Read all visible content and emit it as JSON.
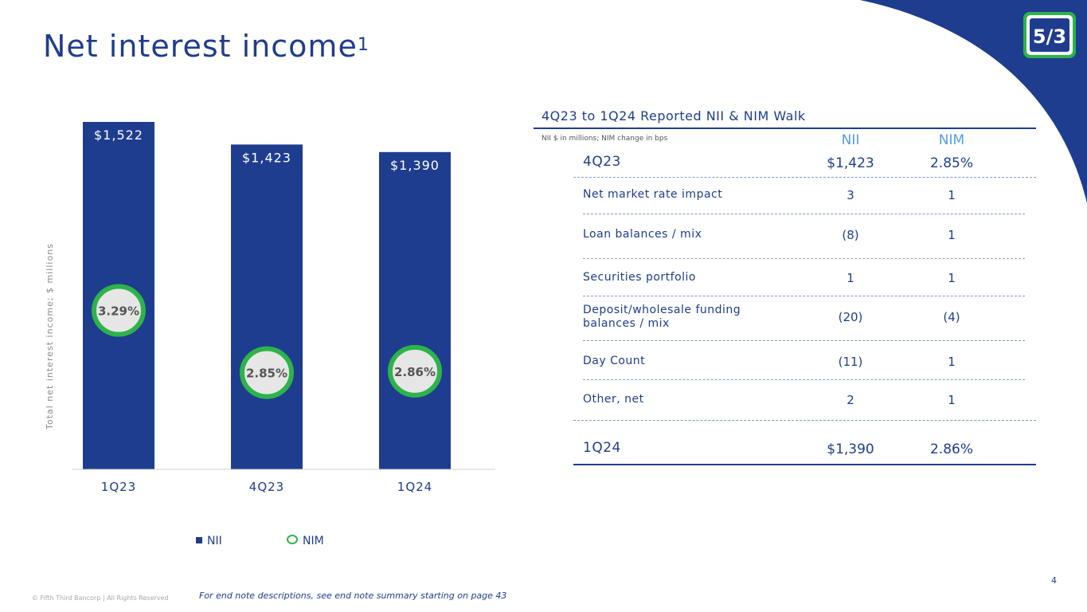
{
  "page": {
    "title": "Net interest income",
    "title_superscript": "1",
    "logo_text": "5/3",
    "page_number": "4",
    "footer_copyright": "© Fifth Third Bancorp | All Rights Reserved",
    "footer_note": "For end note descriptions, see end note summary starting on page 43"
  },
  "colors": {
    "navy": "#1f3d8f",
    "green": "#2db34a",
    "light_blue": "#4f9de0",
    "circle_fill": "#e6e6e6"
  },
  "legend": {
    "nii_label": "NII",
    "nim_label": "NIM"
  },
  "chart_data": {
    "type": "bar",
    "categories": [
      "1Q23",
      "4Q23",
      "1Q24"
    ],
    "series": [
      {
        "name": "NII",
        "values": [
          1522,
          1423,
          1390
        ],
        "labels": [
          "$1,522",
          "$1,423",
          "$1,390"
        ]
      },
      {
        "name": "NIM",
        "values": [
          3.29,
          2.85,
          2.86
        ],
        "labels": [
          "3.29%",
          "2.85%",
          "2.86%"
        ]
      }
    ],
    "ylabel": "Total net interest income; $ millions",
    "xlabel": "",
    "legend_position": "bottom"
  },
  "walk": {
    "title": "4Q23 to 1Q24 Reported NII & NIM Walk",
    "subtitle": "NII $ in millions; NIM change in bps",
    "col_nii": "NII",
    "col_nim": "NIM",
    "start": {
      "label": "4Q23",
      "nii": "$1,423",
      "nim": "2.85%"
    },
    "rows": [
      {
        "label": "Net market rate impact",
        "nii": "3",
        "nim": "1"
      },
      {
        "label": "Loan balances / mix",
        "nii": "(8)",
        "nim": "1"
      },
      {
        "label": "Securities portfolio",
        "nii": "1",
        "nim": "1"
      },
      {
        "label": "Deposit/wholesale funding balances / mix",
        "nii": "(20)",
        "nim": "(4)"
      },
      {
        "label": "Day Count",
        "nii": "(11)",
        "nim": "1"
      },
      {
        "label": "Other, net",
        "nii": "2",
        "nim": "1"
      }
    ],
    "end": {
      "label": "1Q24",
      "nii": "$1,390",
      "nim": "2.86%"
    }
  }
}
